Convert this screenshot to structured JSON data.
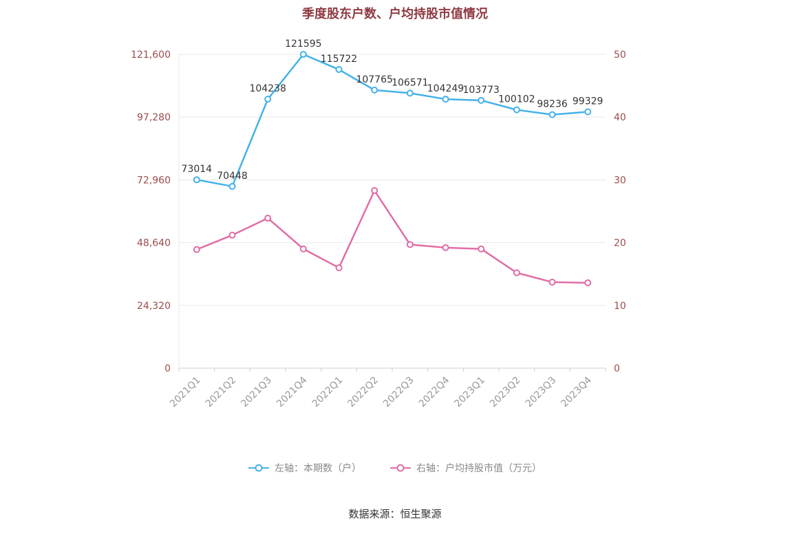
{
  "chart_data": {
    "type": "line",
    "title": "季度股东户数、户均持股市值情况",
    "categories": [
      "2021Q1",
      "2021Q2",
      "2021Q3",
      "2021Q4",
      "2022Q1",
      "2022Q2",
      "2022Q3",
      "2022Q4",
      "2023Q1",
      "2023Q2",
      "2023Q3",
      "2023Q4"
    ],
    "series": [
      {
        "name": "左轴：本期数（户）",
        "yaxis": "left",
        "color": "#45b1e8",
        "marker": "hollow-circle",
        "data_labels": true,
        "values": [
          73014,
          70448,
          104238,
          121595,
          115722,
          107765,
          106571,
          104249,
          103773,
          100102,
          98236,
          99329
        ]
      },
      {
        "name": "右轴：户均持股市值（万元）",
        "yaxis": "right",
        "color": "#e06da6",
        "marker": "hollow-circle",
        "data_labels": false,
        "values": [
          18.9,
          21.2,
          23.9,
          19.0,
          16.0,
          28.3,
          19.7,
          19.2,
          19.0,
          15.2,
          13.7,
          13.6
        ]
      }
    ],
    "left_axis": {
      "range": [
        0,
        121600
      ],
      "tick_values": [
        0,
        24320,
        48640,
        72960,
        97280,
        121600
      ],
      "ticks": [
        "0",
        "24,320",
        "48,640",
        "72,960",
        "97,280",
        "121,600"
      ],
      "color": "#9c4b4b"
    },
    "right_axis": {
      "range": [
        0,
        50
      ],
      "tick_values": [
        0,
        10,
        20,
        30,
        40,
        50
      ],
      "ticks": [
        "0",
        "10",
        "20",
        "30",
        "40",
        "50"
      ],
      "color": "#9c4b4b"
    },
    "x_axis": {
      "label_color": "#999999",
      "label_rotation": 45
    },
    "grid": {
      "show": true,
      "color": "#e8e8e8",
      "axis_line_color": "#cccccc"
    },
    "legend_position": "bottom",
    "data_label_color": "#333333"
  },
  "footer": {
    "source": "数据来源：恒生聚源"
  }
}
